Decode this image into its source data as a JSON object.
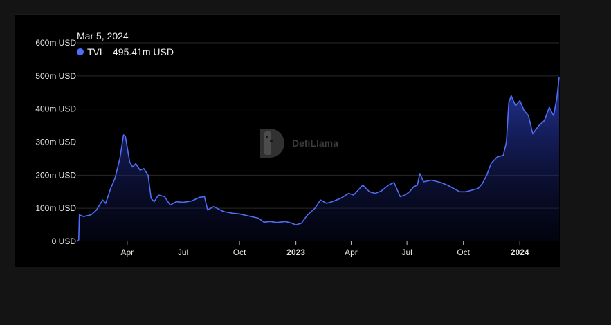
{
  "tooltip": {
    "date": "Mar 5, 2024",
    "series_name": "TVL",
    "value_text": "495.41m USD",
    "marker_color": "#4c6fff"
  },
  "watermark": {
    "text": "DefiLlama"
  },
  "colors": {
    "line": "#4f6ef7",
    "area_top": "#2c3fb8",
    "grid": "#2a2a2a",
    "background": "#000000"
  },
  "chart_data": {
    "type": "area",
    "title": "",
    "xlabel": "",
    "ylabel": "",
    "y_unit": "USD",
    "ylim": [
      0,
      600000000
    ],
    "xlim": [
      "2022-01-10",
      "2024-03-05"
    ],
    "grid": true,
    "y_ticks": [
      {
        "value": 0,
        "label": "0 USD"
      },
      {
        "value": 100000000,
        "label": "100m USD"
      },
      {
        "value": 200000000,
        "label": "200m USD"
      },
      {
        "value": 300000000,
        "label": "300m USD"
      },
      {
        "value": 400000000,
        "label": "400m USD"
      },
      {
        "value": 500000000,
        "label": "500m USD"
      },
      {
        "value": 600000000,
        "label": "600m USD"
      }
    ],
    "x_ticks": [
      {
        "date": "2022-04-01",
        "label": "Apr",
        "bold": false
      },
      {
        "date": "2022-07-01",
        "label": "Jul",
        "bold": false
      },
      {
        "date": "2022-10-01",
        "label": "Oct",
        "bold": false
      },
      {
        "date": "2023-01-01",
        "label": "2023",
        "bold": true
      },
      {
        "date": "2023-04-01",
        "label": "Apr",
        "bold": false
      },
      {
        "date": "2023-07-01",
        "label": "Jul",
        "bold": false
      },
      {
        "date": "2023-10-01",
        "label": "Oct",
        "bold": false
      },
      {
        "date": "2024-01-01",
        "label": "2024",
        "bold": true
      }
    ],
    "series": [
      {
        "name": "TVL",
        "points": [
          [
            "2022-01-10",
            0
          ],
          [
            "2022-01-12",
            5000000
          ],
          [
            "2022-01-13",
            80000000
          ],
          [
            "2022-01-20",
            75000000
          ],
          [
            "2022-02-01",
            80000000
          ],
          [
            "2022-02-10",
            95000000
          ],
          [
            "2022-02-20",
            125000000
          ],
          [
            "2022-02-25",
            115000000
          ],
          [
            "2022-03-05",
            160000000
          ],
          [
            "2022-03-12",
            190000000
          ],
          [
            "2022-03-20",
            250000000
          ],
          [
            "2022-03-26",
            322000000
          ],
          [
            "2022-03-29",
            318000000
          ],
          [
            "2022-04-05",
            240000000
          ],
          [
            "2022-04-10",
            225000000
          ],
          [
            "2022-04-15",
            235000000
          ],
          [
            "2022-04-22",
            215000000
          ],
          [
            "2022-04-28",
            220000000
          ],
          [
            "2022-05-05",
            200000000
          ],
          [
            "2022-05-10",
            130000000
          ],
          [
            "2022-05-15",
            120000000
          ],
          [
            "2022-05-22",
            140000000
          ],
          [
            "2022-06-01",
            135000000
          ],
          [
            "2022-06-10",
            110000000
          ],
          [
            "2022-06-20",
            120000000
          ],
          [
            "2022-07-01",
            118000000
          ],
          [
            "2022-07-15",
            122000000
          ],
          [
            "2022-07-28",
            133000000
          ],
          [
            "2022-08-05",
            135000000
          ],
          [
            "2022-08-10",
            95000000
          ],
          [
            "2022-08-20",
            105000000
          ],
          [
            "2022-09-05",
            90000000
          ],
          [
            "2022-09-20",
            85000000
          ],
          [
            "2022-10-01",
            83000000
          ],
          [
            "2022-10-20",
            75000000
          ],
          [
            "2022-11-01",
            70000000
          ],
          [
            "2022-11-10",
            58000000
          ],
          [
            "2022-11-20",
            60000000
          ],
          [
            "2022-12-01",
            57000000
          ],
          [
            "2022-12-15",
            60000000
          ],
          [
            "2022-12-25",
            55000000
          ],
          [
            "2023-01-01",
            50000000
          ],
          [
            "2023-01-10",
            55000000
          ],
          [
            "2023-01-20",
            80000000
          ],
          [
            "2023-02-01",
            100000000
          ],
          [
            "2023-02-10",
            125000000
          ],
          [
            "2023-02-20",
            115000000
          ],
          [
            "2023-03-01",
            120000000
          ],
          [
            "2023-03-15",
            130000000
          ],
          [
            "2023-03-28",
            145000000
          ],
          [
            "2023-04-05",
            140000000
          ],
          [
            "2023-04-15",
            160000000
          ],
          [
            "2023-04-20",
            170000000
          ],
          [
            "2023-05-01",
            150000000
          ],
          [
            "2023-05-10",
            145000000
          ],
          [
            "2023-05-20",
            152000000
          ],
          [
            "2023-06-01",
            170000000
          ],
          [
            "2023-06-10",
            178000000
          ],
          [
            "2023-06-20",
            135000000
          ],
          [
            "2023-06-28",
            140000000
          ],
          [
            "2023-07-05",
            150000000
          ],
          [
            "2023-07-12",
            165000000
          ],
          [
            "2023-07-18",
            170000000
          ],
          [
            "2023-07-22",
            205000000
          ],
          [
            "2023-07-28",
            180000000
          ],
          [
            "2023-08-10",
            185000000
          ],
          [
            "2023-08-25",
            178000000
          ],
          [
            "2023-09-05",
            170000000
          ],
          [
            "2023-09-15",
            160000000
          ],
          [
            "2023-09-25",
            150000000
          ],
          [
            "2023-10-05",
            150000000
          ],
          [
            "2023-10-15",
            155000000
          ],
          [
            "2023-10-25",
            160000000
          ],
          [
            "2023-11-01",
            175000000
          ],
          [
            "2023-11-08",
            200000000
          ],
          [
            "2023-11-15",
            235000000
          ],
          [
            "2023-11-25",
            255000000
          ],
          [
            "2023-12-05",
            260000000
          ],
          [
            "2023-12-10",
            300000000
          ],
          [
            "2023-12-14",
            420000000
          ],
          [
            "2023-12-18",
            440000000
          ],
          [
            "2023-12-25",
            410000000
          ],
          [
            "2024-01-01",
            425000000
          ],
          [
            "2024-01-08",
            395000000
          ],
          [
            "2024-01-15",
            380000000
          ],
          [
            "2024-01-22",
            325000000
          ],
          [
            "2024-02-01",
            350000000
          ],
          [
            "2024-02-10",
            365000000
          ],
          [
            "2024-02-18",
            405000000
          ],
          [
            "2024-02-25",
            380000000
          ],
          [
            "2024-03-01",
            430000000
          ],
          [
            "2024-03-05",
            495410000
          ]
        ]
      }
    ]
  }
}
